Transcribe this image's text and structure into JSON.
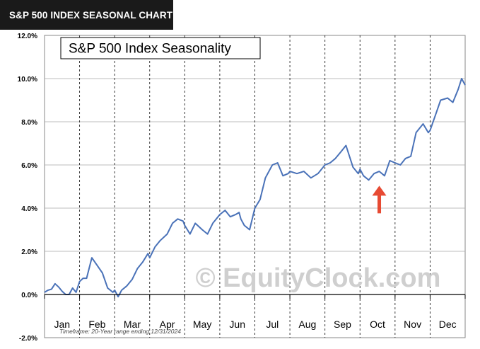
{
  "banner": {
    "title": "S&P 500 INDEX SEASONAL CHART"
  },
  "chart_data": {
    "type": "line",
    "title": "S&P 500 Index Seasonality",
    "footnote": "Timeframe: 20-Year range ending 12/31/2024",
    "watermark": "© EquityClock.com",
    "xlabel": "",
    "ylabel": "",
    "ylim": [
      -2.0,
      12.0
    ],
    "y_ticks": [
      "-2.0%",
      "0.0%",
      "2.0%",
      "4.0%",
      "6.0%",
      "8.0%",
      "10.0%",
      "12.0%"
    ],
    "y_tick_values": [
      -2,
      0,
      2,
      4,
      6,
      8,
      10,
      12
    ],
    "categories": [
      "Jan",
      "Feb",
      "Mar",
      "Apr",
      "May",
      "Jun",
      "Jul",
      "Aug",
      "Sep",
      "Oct",
      "Nov",
      "Dec"
    ],
    "grid": true,
    "series": [
      {
        "color": "#4a72b8",
        "x": [
          0.0,
          0.1,
          0.2,
          0.3,
          0.4,
          0.5,
          0.6,
          0.7,
          0.8,
          0.9,
          1.0,
          1.1,
          1.2,
          1.35,
          1.5,
          1.65,
          1.8,
          1.95,
          2.0,
          2.1,
          2.2,
          2.35,
          2.5,
          2.65,
          2.8,
          2.95,
          3.0,
          3.15,
          3.3,
          3.5,
          3.65,
          3.8,
          3.95,
          4.0,
          4.15,
          4.3,
          4.5,
          4.65,
          4.8,
          4.95,
          5.0,
          5.15,
          5.3,
          5.45,
          5.55,
          5.6,
          5.7,
          5.85,
          6.0,
          6.15,
          6.3,
          6.5,
          6.65,
          6.8,
          6.95,
          7.0,
          7.2,
          7.4,
          7.6,
          7.8,
          8.0,
          8.15,
          8.3,
          8.45,
          8.6,
          8.8,
          8.95,
          9.0,
          9.1,
          9.25,
          9.4,
          9.55,
          9.7,
          9.85,
          10.0,
          10.15,
          10.3,
          10.45,
          10.6,
          10.8,
          10.95,
          11.0,
          11.15,
          11.3,
          11.5,
          11.65,
          11.8,
          11.9,
          12.0
        ],
        "y": [
          0.1,
          0.2,
          0.25,
          0.5,
          0.35,
          0.15,
          0.0,
          0.0,
          0.3,
          0.1,
          0.6,
          0.75,
          0.75,
          1.7,
          1.35,
          1.0,
          0.3,
          0.1,
          0.2,
          -0.1,
          0.2,
          0.4,
          0.7,
          1.2,
          1.5,
          1.9,
          1.7,
          2.2,
          2.5,
          2.8,
          3.3,
          3.5,
          3.4,
          3.2,
          2.8,
          3.3,
          3.0,
          2.8,
          3.3,
          3.6,
          3.7,
          3.9,
          3.6,
          3.7,
          3.8,
          3.5,
          3.2,
          3.0,
          4.0,
          4.4,
          5.4,
          6.0,
          6.1,
          5.5,
          5.6,
          5.7,
          5.6,
          5.7,
          5.4,
          5.6,
          6.0,
          6.1,
          6.3,
          6.6,
          6.9,
          5.9,
          5.6,
          5.8,
          5.5,
          5.3,
          5.6,
          5.7,
          5.5,
          6.2,
          6.1,
          6.0,
          6.3,
          6.4,
          7.5,
          7.9,
          7.5,
          7.6,
          8.3,
          9.0,
          9.1,
          8.9,
          9.5,
          10.0,
          9.7
        ]
      }
    ],
    "annotations": [
      {
        "type": "arrow",
        "color": "#e74a33",
        "direction": "up",
        "month_index": 9.55,
        "value": 5.3
      }
    ]
  }
}
